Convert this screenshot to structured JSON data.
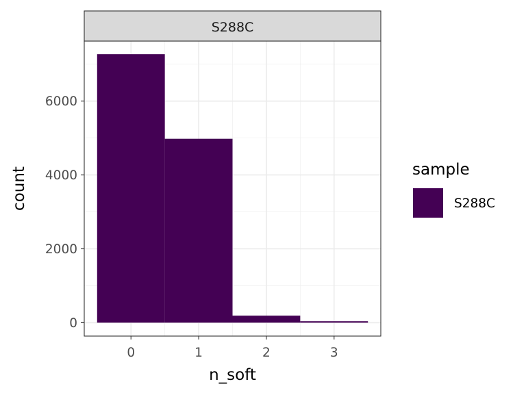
{
  "chart_data": {
    "type": "bar",
    "facet_label": "S288C",
    "xlabel": "n_soft",
    "ylabel": "count",
    "x": [
      0,
      1,
      2,
      3
    ],
    "x_ticks": [
      0,
      1,
      2,
      3
    ],
    "y_ticks": [
      0,
      2000,
      4000,
      6000
    ],
    "xlim": [
      -0.69,
      3.69
    ],
    "ylim": [
      -363,
      7625
    ],
    "series": [
      {
        "name": "S288C",
        "color": "#440154",
        "values": [
          7270,
          4980,
          190,
          40
        ]
      }
    ],
    "legend": {
      "title": "sample",
      "placement": "right",
      "entries": [
        {
          "label": "S288C",
          "color": "#440154"
        }
      ]
    },
    "grid": true,
    "theme": "bw"
  }
}
